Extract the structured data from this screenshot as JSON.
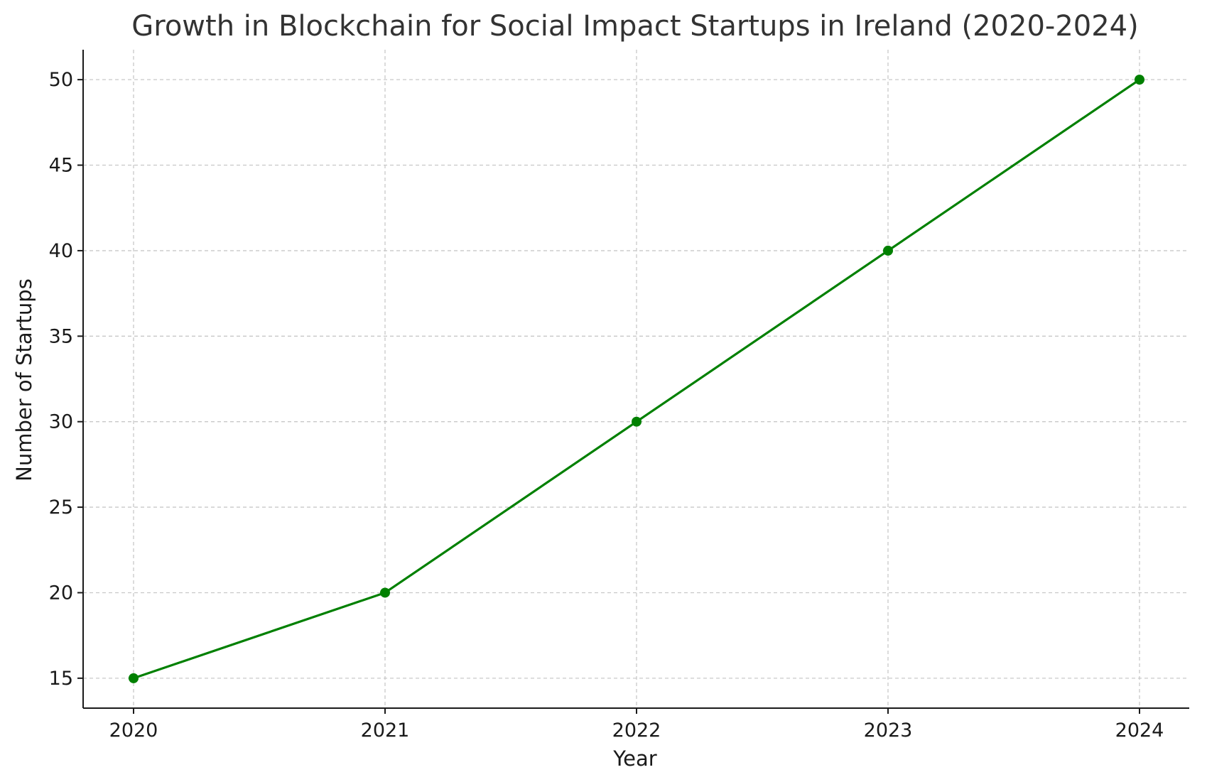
{
  "chart_data": {
    "type": "line",
    "title": "Growth in Blockchain for Social Impact Startups in Ireland (2020-2024)",
    "xlabel": "Year",
    "ylabel": "Number of Startups",
    "x": [
      "2020",
      "2021",
      "2022",
      "2023",
      "2024"
    ],
    "series": [
      {
        "values": [
          15,
          20,
          30,
          40,
          50
        ],
        "color": "#008000",
        "marker": "circle"
      }
    ],
    "yticks": [
      15,
      20,
      25,
      30,
      35,
      40,
      45,
      50
    ],
    "ylim": [
      13.25,
      51.75
    ],
    "grid": true,
    "grid_style": "dashed",
    "legend": "none"
  }
}
